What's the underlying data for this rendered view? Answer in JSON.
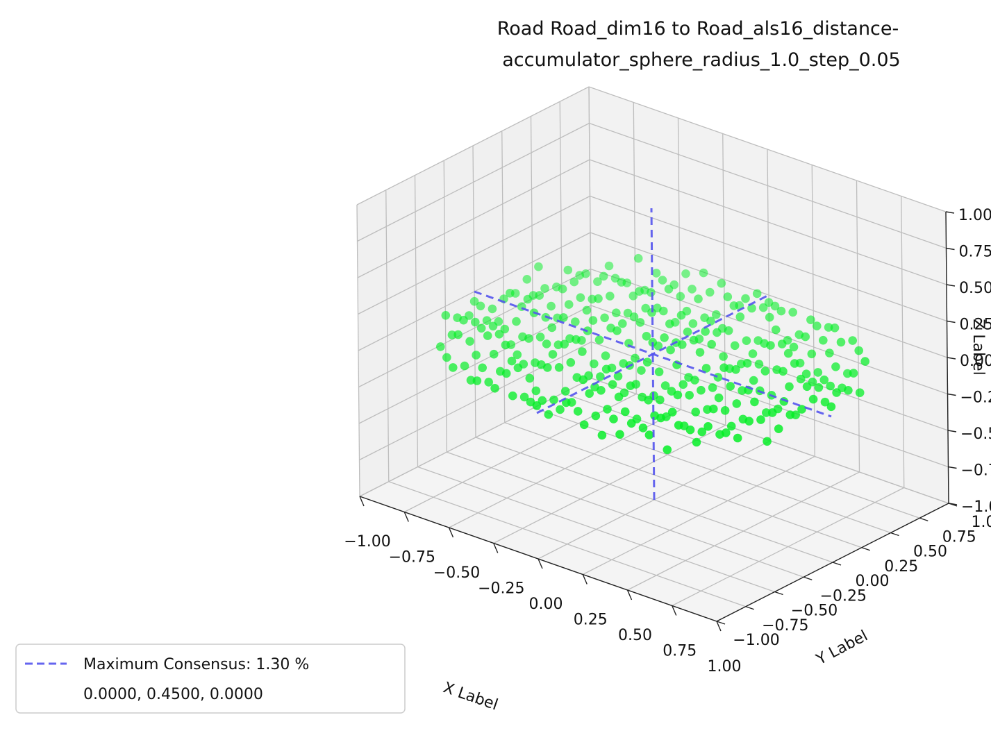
{
  "chart_data": {
    "type": "scatter",
    "title": [
      "Road Road_dim16 to Road_als16_distance-",
      "accumulator_sphere_radius_1.0_step_0.05"
    ],
    "xlabel": "X Label",
    "ylabel": "Y Label",
    "zlabel": "Z Label",
    "xlim": [
      -1.0,
      1.0
    ],
    "ylim": [
      -1.0,
      1.0
    ],
    "zlim": [
      -1.0,
      1.0
    ],
    "ticks": [
      -1.0,
      -0.75,
      -0.5,
      -0.25,
      0.0,
      0.25,
      0.5,
      0.75,
      1.0
    ],
    "tick_labels": [
      "−1.00",
      "−0.75",
      "−0.50",
      "−0.25",
      "0.00",
      "0.25",
      "0.50",
      "0.75",
      "1.00"
    ],
    "grid": true,
    "points": {
      "color": "#00ee22",
      "shape": "flat disk of sampled points",
      "x_range": [
        -1.0,
        1.0
      ],
      "y_range": [
        -1.0,
        1.0
      ],
      "z_range": [
        -0.08,
        0.08
      ],
      "step": 0.1
    },
    "consensus_lines": {
      "style": "dashed",
      "color": "#5555ee",
      "center": [
        0.0,
        0.45,
        0.0
      ],
      "half_length": 1.0
    },
    "legend": {
      "placement": "lower-left",
      "line_label": "Maximum Consensus: 1.30 %",
      "value_label": "0.0000, 0.4500, 0.0000"
    }
  }
}
